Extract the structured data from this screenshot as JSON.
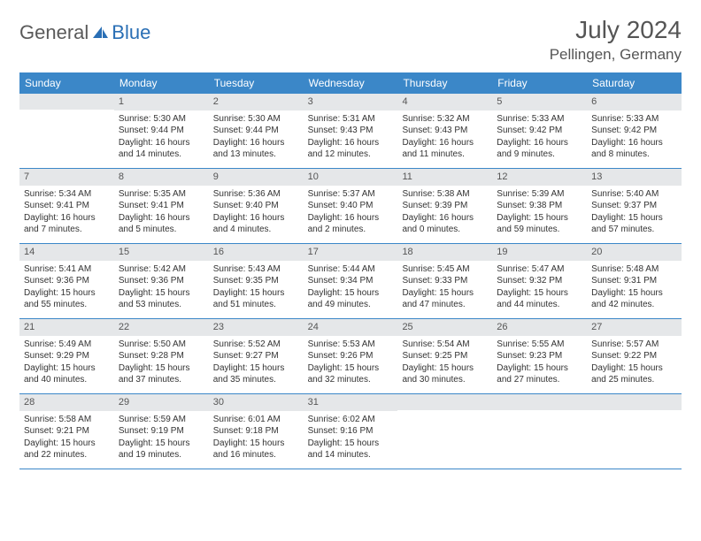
{
  "logo": {
    "general": "General",
    "blue": "Blue"
  },
  "title": "July 2024",
  "location": "Pellingen, Germany",
  "colors": {
    "header_bg": "#3b87c8",
    "header_text": "#ffffff",
    "daynum_bg": "#e5e7e9",
    "text": "#333333",
    "rule": "#3b87c8",
    "logo_gray": "#5a5a5a",
    "logo_blue": "#2a6fb5"
  },
  "day_headers": [
    "Sunday",
    "Monday",
    "Tuesday",
    "Wednesday",
    "Thursday",
    "Friday",
    "Saturday"
  ],
  "weeks": [
    [
      {
        "n": "",
        "lines": []
      },
      {
        "n": "1",
        "lines": [
          "Sunrise: 5:30 AM",
          "Sunset: 9:44 PM",
          "Daylight: 16 hours",
          "and 14 minutes."
        ]
      },
      {
        "n": "2",
        "lines": [
          "Sunrise: 5:30 AM",
          "Sunset: 9:44 PM",
          "Daylight: 16 hours",
          "and 13 minutes."
        ]
      },
      {
        "n": "3",
        "lines": [
          "Sunrise: 5:31 AM",
          "Sunset: 9:43 PM",
          "Daylight: 16 hours",
          "and 12 minutes."
        ]
      },
      {
        "n": "4",
        "lines": [
          "Sunrise: 5:32 AM",
          "Sunset: 9:43 PM",
          "Daylight: 16 hours",
          "and 11 minutes."
        ]
      },
      {
        "n": "5",
        "lines": [
          "Sunrise: 5:33 AM",
          "Sunset: 9:42 PM",
          "Daylight: 16 hours",
          "and 9 minutes."
        ]
      },
      {
        "n": "6",
        "lines": [
          "Sunrise: 5:33 AM",
          "Sunset: 9:42 PM",
          "Daylight: 16 hours",
          "and 8 minutes."
        ]
      }
    ],
    [
      {
        "n": "7",
        "lines": [
          "Sunrise: 5:34 AM",
          "Sunset: 9:41 PM",
          "Daylight: 16 hours",
          "and 7 minutes."
        ]
      },
      {
        "n": "8",
        "lines": [
          "Sunrise: 5:35 AM",
          "Sunset: 9:41 PM",
          "Daylight: 16 hours",
          "and 5 minutes."
        ]
      },
      {
        "n": "9",
        "lines": [
          "Sunrise: 5:36 AM",
          "Sunset: 9:40 PM",
          "Daylight: 16 hours",
          "and 4 minutes."
        ]
      },
      {
        "n": "10",
        "lines": [
          "Sunrise: 5:37 AM",
          "Sunset: 9:40 PM",
          "Daylight: 16 hours",
          "and 2 minutes."
        ]
      },
      {
        "n": "11",
        "lines": [
          "Sunrise: 5:38 AM",
          "Sunset: 9:39 PM",
          "Daylight: 16 hours",
          "and 0 minutes."
        ]
      },
      {
        "n": "12",
        "lines": [
          "Sunrise: 5:39 AM",
          "Sunset: 9:38 PM",
          "Daylight: 15 hours",
          "and 59 minutes."
        ]
      },
      {
        "n": "13",
        "lines": [
          "Sunrise: 5:40 AM",
          "Sunset: 9:37 PM",
          "Daylight: 15 hours",
          "and 57 minutes."
        ]
      }
    ],
    [
      {
        "n": "14",
        "lines": [
          "Sunrise: 5:41 AM",
          "Sunset: 9:36 PM",
          "Daylight: 15 hours",
          "and 55 minutes."
        ]
      },
      {
        "n": "15",
        "lines": [
          "Sunrise: 5:42 AM",
          "Sunset: 9:36 PM",
          "Daylight: 15 hours",
          "and 53 minutes."
        ]
      },
      {
        "n": "16",
        "lines": [
          "Sunrise: 5:43 AM",
          "Sunset: 9:35 PM",
          "Daylight: 15 hours",
          "and 51 minutes."
        ]
      },
      {
        "n": "17",
        "lines": [
          "Sunrise: 5:44 AM",
          "Sunset: 9:34 PM",
          "Daylight: 15 hours",
          "and 49 minutes."
        ]
      },
      {
        "n": "18",
        "lines": [
          "Sunrise: 5:45 AM",
          "Sunset: 9:33 PM",
          "Daylight: 15 hours",
          "and 47 minutes."
        ]
      },
      {
        "n": "19",
        "lines": [
          "Sunrise: 5:47 AM",
          "Sunset: 9:32 PM",
          "Daylight: 15 hours",
          "and 44 minutes."
        ]
      },
      {
        "n": "20",
        "lines": [
          "Sunrise: 5:48 AM",
          "Sunset: 9:31 PM",
          "Daylight: 15 hours",
          "and 42 minutes."
        ]
      }
    ],
    [
      {
        "n": "21",
        "lines": [
          "Sunrise: 5:49 AM",
          "Sunset: 9:29 PM",
          "Daylight: 15 hours",
          "and 40 minutes."
        ]
      },
      {
        "n": "22",
        "lines": [
          "Sunrise: 5:50 AM",
          "Sunset: 9:28 PM",
          "Daylight: 15 hours",
          "and 37 minutes."
        ]
      },
      {
        "n": "23",
        "lines": [
          "Sunrise: 5:52 AM",
          "Sunset: 9:27 PM",
          "Daylight: 15 hours",
          "and 35 minutes."
        ]
      },
      {
        "n": "24",
        "lines": [
          "Sunrise: 5:53 AM",
          "Sunset: 9:26 PM",
          "Daylight: 15 hours",
          "and 32 minutes."
        ]
      },
      {
        "n": "25",
        "lines": [
          "Sunrise: 5:54 AM",
          "Sunset: 9:25 PM",
          "Daylight: 15 hours",
          "and 30 minutes."
        ]
      },
      {
        "n": "26",
        "lines": [
          "Sunrise: 5:55 AM",
          "Sunset: 9:23 PM",
          "Daylight: 15 hours",
          "and 27 minutes."
        ]
      },
      {
        "n": "27",
        "lines": [
          "Sunrise: 5:57 AM",
          "Sunset: 9:22 PM",
          "Daylight: 15 hours",
          "and 25 minutes."
        ]
      }
    ],
    [
      {
        "n": "28",
        "lines": [
          "Sunrise: 5:58 AM",
          "Sunset: 9:21 PM",
          "Daylight: 15 hours",
          "and 22 minutes."
        ]
      },
      {
        "n": "29",
        "lines": [
          "Sunrise: 5:59 AM",
          "Sunset: 9:19 PM",
          "Daylight: 15 hours",
          "and 19 minutes."
        ]
      },
      {
        "n": "30",
        "lines": [
          "Sunrise: 6:01 AM",
          "Sunset: 9:18 PM",
          "Daylight: 15 hours",
          "and 16 minutes."
        ]
      },
      {
        "n": "31",
        "lines": [
          "Sunrise: 6:02 AM",
          "Sunset: 9:16 PM",
          "Daylight: 15 hours",
          "and 14 minutes."
        ]
      },
      {
        "n": "",
        "lines": []
      },
      {
        "n": "",
        "lines": []
      },
      {
        "n": "",
        "lines": []
      }
    ]
  ]
}
